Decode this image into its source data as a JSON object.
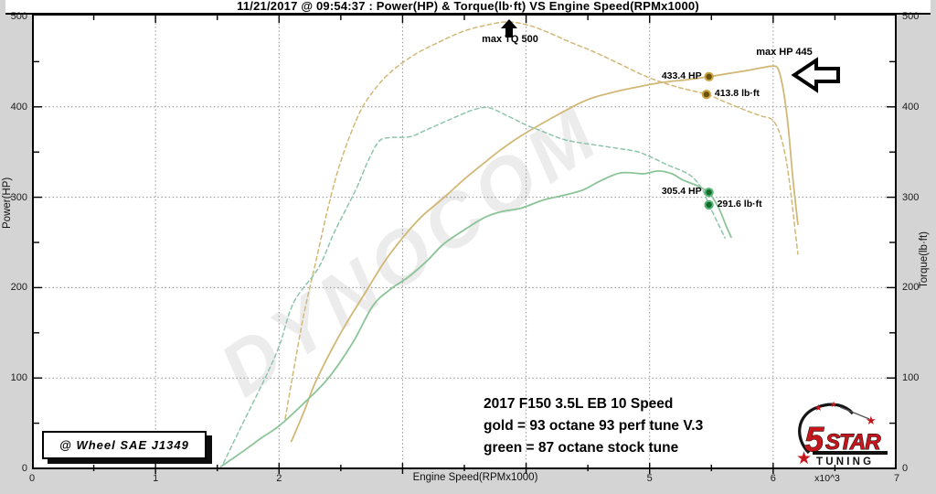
{
  "title": "11/21/2017 @ 09:54:37 : Power(HP) & Torque(lb·ft) VS Engine Speed(RPMx1000)",
  "axes": {
    "x": {
      "title": "Engine Speed(RPMx1000)",
      "multiplier": "x10^3",
      "range": [
        0,
        7
      ],
      "ticks": [
        0,
        1,
        2,
        3,
        4,
        5,
        6,
        7
      ],
      "tick_labels": [
        "0",
        "1",
        "2",
        "",
        "",
        "5",
        "6",
        "7"
      ]
    },
    "y_left": {
      "title": "Power(HP)",
      "range": [
        0,
        500
      ],
      "ticks": [
        0,
        100,
        200,
        300,
        400,
        500
      ]
    },
    "y_right": {
      "title": "Torque(lb·ft)",
      "range": [
        0,
        500
      ],
      "ticks": [
        0,
        100,
        200,
        300,
        400,
        500
      ]
    }
  },
  "chart_data": {
    "type": "line",
    "title": "Power(HP) & Torque(lb·ft) VS Engine Speed(RPMx1000)",
    "xlabel": "Engine Speed(RPMx1000)",
    "ylabel_left": "Power(HP)",
    "ylabel_right": "Torque(lb·ft)",
    "xlim": [
      0,
      7
    ],
    "ylim": [
      0,
      500
    ],
    "grid": true,
    "series": [
      {
        "name": "93 octane 93 perf tune V.3 - Power (HP)",
        "slug": "gold-power",
        "color": "#d2b877",
        "dash": false,
        "axis": "left",
        "points": [
          [
            2.1,
            30
          ],
          [
            2.2,
            62
          ],
          [
            2.3,
            97
          ],
          [
            2.5,
            150
          ],
          [
            2.71,
            197
          ],
          [
            2.85,
            228
          ],
          [
            3.0,
            255
          ],
          [
            3.15,
            278
          ],
          [
            3.33,
            299
          ],
          [
            3.5,
            320
          ],
          [
            3.67,
            339
          ],
          [
            3.8,
            353
          ],
          [
            3.96,
            368
          ],
          [
            4.2,
            387
          ],
          [
            4.48,
            407
          ],
          [
            4.7,
            416
          ],
          [
            4.9,
            422
          ],
          [
            5.1,
            427
          ],
          [
            5.3,
            430
          ],
          [
            5.46,
            433
          ],
          [
            5.6,
            436
          ],
          [
            5.78,
            440
          ],
          [
            5.9,
            443
          ],
          [
            5.99,
            445
          ],
          [
            6.04,
            442
          ],
          [
            6.08,
            420
          ],
          [
            6.12,
            380
          ],
          [
            6.16,
            320
          ],
          [
            6.2,
            270
          ]
        ]
      },
      {
        "name": "93 octane 93 perf tune V.3 - Torque (lb·ft)",
        "slug": "gold-torque",
        "color": "#d2b877",
        "dash": true,
        "axis": "right",
        "points": [
          [
            2.05,
            55
          ],
          [
            2.12,
            110
          ],
          [
            2.2,
            170
          ],
          [
            2.3,
            230
          ],
          [
            2.4,
            290
          ],
          [
            2.5,
            340
          ],
          [
            2.64,
            390
          ],
          [
            2.75,
            415
          ],
          [
            2.9,
            438
          ],
          [
            3.1,
            458
          ],
          [
            3.3,
            472
          ],
          [
            3.5,
            484
          ],
          [
            3.7,
            491
          ],
          [
            3.85,
            494
          ],
          [
            4.0,
            491
          ],
          [
            4.15,
            484
          ],
          [
            4.35,
            472
          ],
          [
            4.53,
            462
          ],
          [
            4.75,
            448
          ],
          [
            5.0,
            432
          ],
          [
            5.25,
            421
          ],
          [
            5.46,
            414
          ],
          [
            5.6,
            406
          ],
          [
            5.78,
            396
          ],
          [
            5.9,
            390
          ],
          [
            5.99,
            386
          ],
          [
            6.05,
            372
          ],
          [
            6.1,
            345
          ],
          [
            6.14,
            308
          ],
          [
            6.2,
            237
          ]
        ]
      },
      {
        "name": "87 octane stock tune - Power (HP)",
        "slug": "green-power",
        "color": "#8cc497",
        "dash": false,
        "axis": "left",
        "points": [
          [
            1.53,
            2
          ],
          [
            1.7,
            18
          ],
          [
            1.85,
            33
          ],
          [
            2.0,
            47
          ],
          [
            2.2,
            72
          ],
          [
            2.4,
            100
          ],
          [
            2.6,
            140
          ],
          [
            2.76,
            180
          ],
          [
            2.9,
            198
          ],
          [
            3.05,
            212
          ],
          [
            3.2,
            230
          ],
          [
            3.33,
            248
          ],
          [
            3.5,
            264
          ],
          [
            3.67,
            278
          ],
          [
            3.8,
            284
          ],
          [
            3.96,
            288
          ],
          [
            4.14,
            297
          ],
          [
            4.3,
            302
          ],
          [
            4.46,
            308
          ],
          [
            4.6,
            318
          ],
          [
            4.77,
            327
          ],
          [
            4.95,
            326
          ],
          [
            5.07,
            329
          ],
          [
            5.18,
            326
          ],
          [
            5.27,
            319
          ],
          [
            5.38,
            313
          ],
          [
            5.48,
            305
          ],
          [
            5.56,
            288
          ],
          [
            5.62,
            268
          ],
          [
            5.66,
            256
          ]
        ]
      },
      {
        "name": "87 octane stock tune - Torque (lb·ft)",
        "slug": "green-torque",
        "color": "#8ec5ab",
        "dash": true,
        "axis": "right",
        "points": [
          [
            1.55,
            6
          ],
          [
            1.7,
            48
          ],
          [
            1.88,
            98
          ],
          [
            2.0,
            135
          ],
          [
            2.12,
            184
          ],
          [
            2.32,
            222
          ],
          [
            2.45,
            262
          ],
          [
            2.62,
            308
          ],
          [
            2.72,
            340
          ],
          [
            2.81,
            362
          ],
          [
            2.9,
            366
          ],
          [
            3.06,
            367
          ],
          [
            3.2,
            375
          ],
          [
            3.45,
            390
          ],
          [
            3.58,
            397
          ],
          [
            3.7,
            399
          ],
          [
            3.85,
            390
          ],
          [
            4.0,
            380
          ],
          [
            4.15,
            372
          ],
          [
            4.33,
            363
          ],
          [
            4.6,
            357
          ],
          [
            4.88,
            351
          ],
          [
            5.0,
            345
          ],
          [
            5.14,
            336
          ],
          [
            5.32,
            325
          ],
          [
            5.42,
            310
          ],
          [
            5.48,
            292
          ],
          [
            5.55,
            272
          ],
          [
            5.61,
            255
          ]
        ]
      }
    ],
    "markers": [
      {
        "label": "433.4 HP",
        "rpm": 5.48,
        "value": 433.4,
        "series": "gold",
        "side": "left"
      },
      {
        "label": "413.8 lb·ft",
        "rpm": 5.46,
        "value": 413.8,
        "series": "gold",
        "side": "right"
      },
      {
        "label": "305.4 HP",
        "rpm": 5.48,
        "value": 305.4,
        "series": "green",
        "side": "left"
      },
      {
        "label": "291.6 lb·ft",
        "rpm": 5.48,
        "value": 291.6,
        "series": "green",
        "side": "right"
      }
    ],
    "annotations": [
      {
        "text": "max TQ 500",
        "arrow": "up",
        "points_to": "gold torque peak"
      },
      {
        "text": "max HP 445",
        "arrow": "left",
        "points_to": "gold power peak"
      }
    ],
    "legend_position": "none"
  },
  "notes": [
    "2017 F150 3.5L EB 10 Speed",
    "gold = 93 octane 93 perf tune V.3",
    "green = 87 octane stock tune"
  ],
  "sae_label": "@ Wheel SAE J1349",
  "watermark": "DYNOCOM",
  "logo": {
    "five": "5",
    "star": "STAR",
    "tuning": "TUNING"
  },
  "colors": {
    "gold": "#d2b877",
    "green_solid": "#8cc497",
    "green_dashed": "#8ec5ab",
    "grid": "#909090",
    "border": "#000000",
    "marker_gold_fill": "#6b520f",
    "marker_gold_stroke": "#c9a53f",
    "marker_green_fill": "#156b2e",
    "marker_green_stroke": "#57b879",
    "background": "#d4d4d4",
    "plot_background": "#ffffff",
    "watermark_gray": "#ececec",
    "logo_red": "#c4161c"
  }
}
